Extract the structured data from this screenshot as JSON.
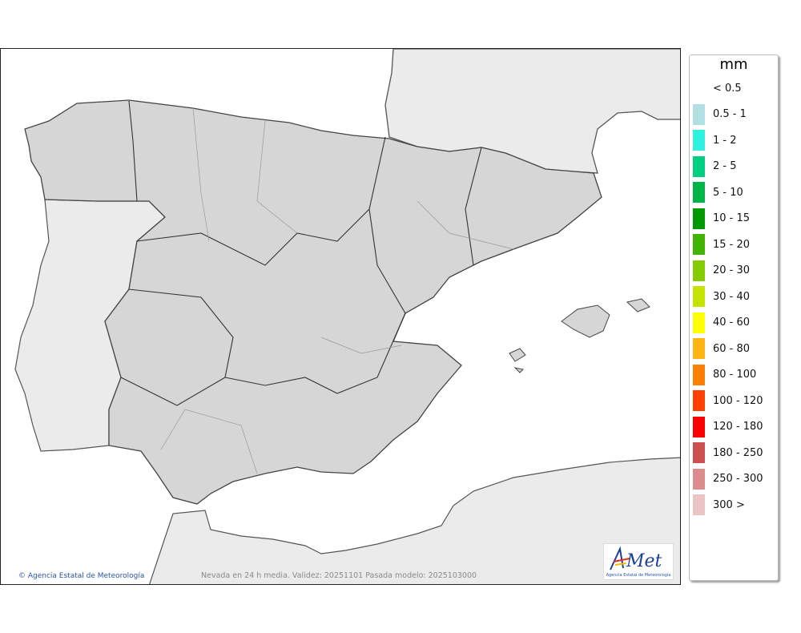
{
  "legend": {
    "unit": "mm",
    "items": [
      {
        "label": "< 0.5",
        "color": ""
      },
      {
        "label": "0.5 - 1",
        "color": "#b0dfe4"
      },
      {
        "label": "1 - 2",
        "color": "#30f0e0"
      },
      {
        "label": "2 - 5",
        "color": "#00d080"
      },
      {
        "label": "5 - 10",
        "color": "#00b448"
      },
      {
        "label": "10 - 15",
        "color": "#009a00"
      },
      {
        "label": "15 - 20",
        "color": "#40b400"
      },
      {
        "label": "20 - 30",
        "color": "#84cc00"
      },
      {
        "label": "30 - 40",
        "color": "#c4e400"
      },
      {
        "label": "40 - 60",
        "color": "#ffff00"
      },
      {
        "label": "60 - 80",
        "color": "#ffb414"
      },
      {
        "label": "80 - 100",
        "color": "#ff8000"
      },
      {
        "label": "100 - 120",
        "color": "#ff4000"
      },
      {
        "label": "120 - 180",
        "color": "#ff0000"
      },
      {
        "label": "180 - 250",
        "color": "#cc5050"
      },
      {
        "label": "250 - 300",
        "color": "#dc8c8c"
      },
      {
        "label": "300 >",
        "color": "#ecc4c4"
      }
    ]
  },
  "map": {
    "credit": "Agencia Estatal de Meteorología",
    "caption": "Nevada en 24 h media. Validez: 20251101 Pasada modelo: 2025103000",
    "logo": {
      "text": "AEMet",
      "subtitle": "Agencia Estatal de Meteorología"
    }
  }
}
